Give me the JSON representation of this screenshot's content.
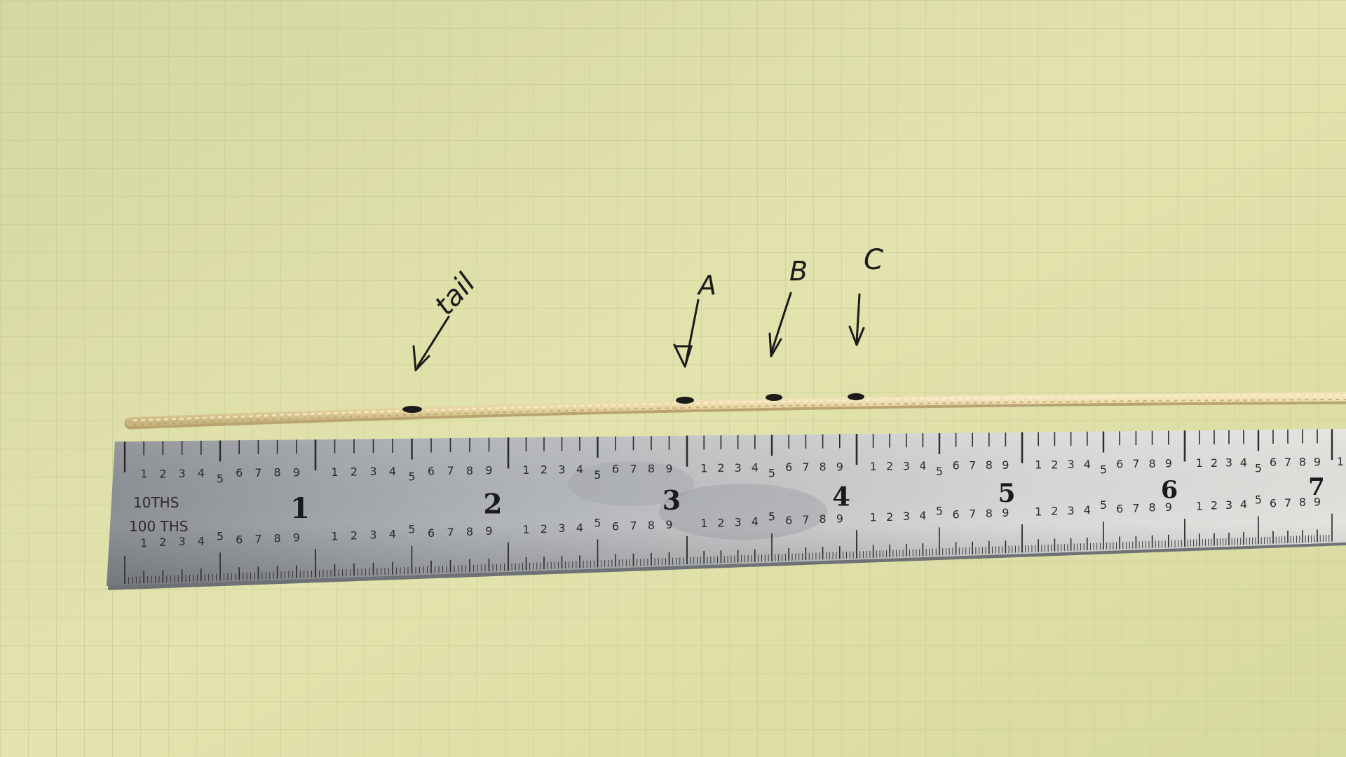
{
  "annotations": {
    "tail": "tail",
    "a": "A",
    "b": "B",
    "c": "C"
  },
  "ruler": {
    "scale_tenths": "10THS",
    "scale_hundredths": "100 THS",
    "inch_labels": [
      "1",
      "2",
      "3",
      "4",
      "5",
      "6",
      "7"
    ],
    "sub_labels": [
      "1",
      "2",
      "3",
      "4",
      "5",
      "6",
      "7",
      "8",
      "9"
    ],
    "partial_label": "1"
  },
  "colors": {
    "paper": "#dedfa8",
    "grid": "#c9cf98",
    "cord": "#e8d7a4",
    "ink": "#1b1b1b",
    "ruler_metal": "#b9bcbf"
  }
}
